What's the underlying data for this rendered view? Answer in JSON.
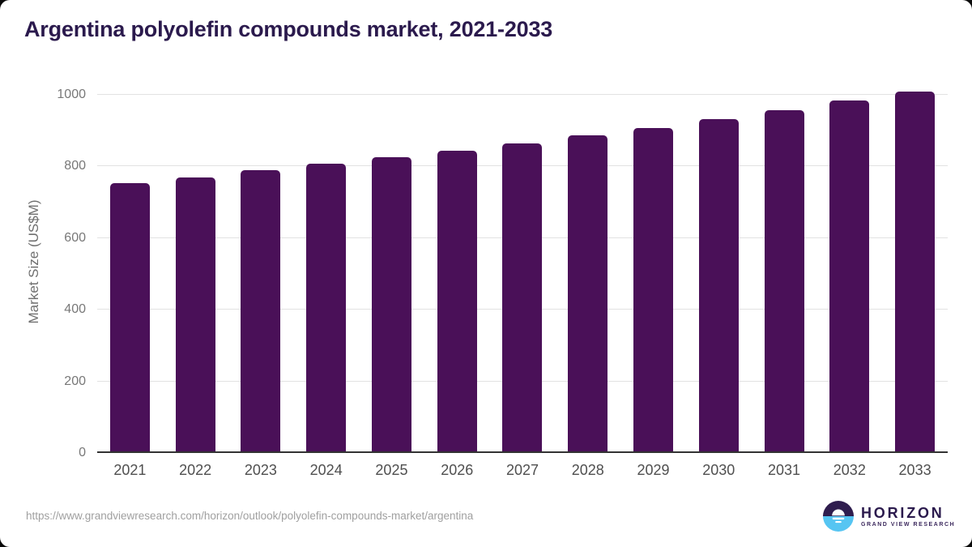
{
  "title": "Argentina polyolefin compounds market, 2021-2033",
  "chart_data": {
    "type": "bar",
    "title": "Argentina polyolefin compounds market, 2021-2033",
    "categories": [
      "2021",
      "2022",
      "2023",
      "2024",
      "2025",
      "2026",
      "2027",
      "2028",
      "2029",
      "2030",
      "2031",
      "2032",
      "2033"
    ],
    "values": [
      753,
      770,
      789,
      807,
      825,
      845,
      865,
      886,
      907,
      932,
      957,
      985,
      1010
    ],
    "xlabel": "",
    "ylabel": "Market Size (US$M)",
    "ylim": [
      0,
      1000
    ],
    "yticks": [
      0,
      200,
      400,
      600,
      800,
      1000
    ],
    "grid": true,
    "legend": false,
    "bar_color": "#4a1058"
  },
  "footer": {
    "source_url": "https://www.grandviewresearch.com/horizon/outlook/polyolefin-compounds-market/argentina",
    "logo": {
      "name": "HORIZON",
      "subtitle": "GRAND VIEW RESEARCH"
    }
  },
  "colors": {
    "bar": "#4a1058",
    "title_text": "#2b1a4d",
    "gridline": "#e2e2e2",
    "axis_line": "#333333",
    "x_tick_text": "#4f4f4f",
    "y_tick_text": "#787878",
    "url_text": "#a0a0a0",
    "logo_dark_purple": "#2f1d4e",
    "logo_light_blue": "#56c5f2"
  }
}
